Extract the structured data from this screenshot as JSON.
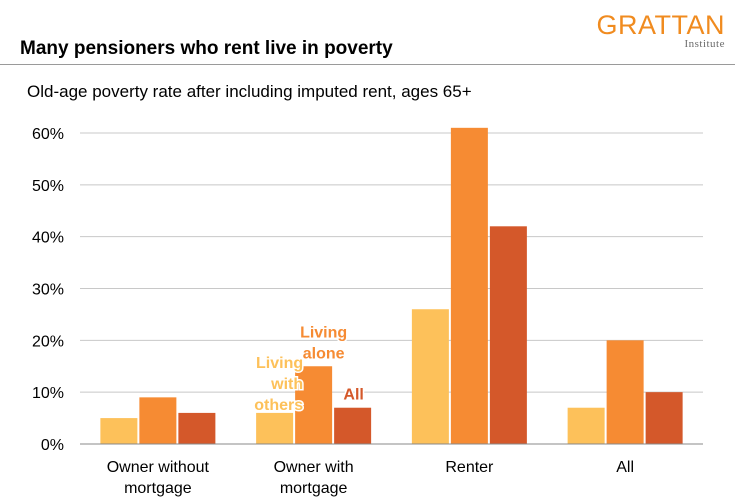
{
  "header": {
    "title": "Many pensioners who rent live in poverty",
    "logo_main": "GRATTAN",
    "logo_sub": "Institute"
  },
  "colors": {
    "living_with_others": "#fdc15a",
    "living_alone": "#f68b33",
    "all": "#d4582a",
    "grid": "#c8c8c8",
    "axis": "#888888",
    "logo": "#f08b1f"
  },
  "chart_data": {
    "type": "bar",
    "subtitle": "Old-age poverty rate after including imputed rent, ages 65+",
    "categories": [
      [
        "Owner without",
        "mortgage"
      ],
      [
        "Owner with",
        "mortgage"
      ],
      [
        "Renter"
      ],
      [
        "All"
      ]
    ],
    "series": [
      {
        "name": "Living with others",
        "values": [
          5,
          6,
          26,
          7
        ]
      },
      {
        "name": "Living alone",
        "values": [
          9,
          15,
          61,
          20
        ]
      },
      {
        "name": "All",
        "values": [
          6,
          7,
          42,
          10
        ]
      }
    ],
    "ylim": [
      0,
      60
    ],
    "yticks": [
      0,
      10,
      20,
      30,
      40,
      50,
      60
    ],
    "ytick_labels": [
      "0%",
      "10%",
      "20%",
      "30%",
      "40%",
      "50%",
      "60%"
    ],
    "grid": true,
    "annotations": [
      {
        "series": 0,
        "category": 1,
        "lines": [
          "Living",
          "with",
          "others"
        ]
      },
      {
        "series": 1,
        "category": 1,
        "lines": [
          "Living",
          "alone"
        ]
      },
      {
        "series": 2,
        "category": 1,
        "lines": [
          "All"
        ]
      }
    ]
  }
}
